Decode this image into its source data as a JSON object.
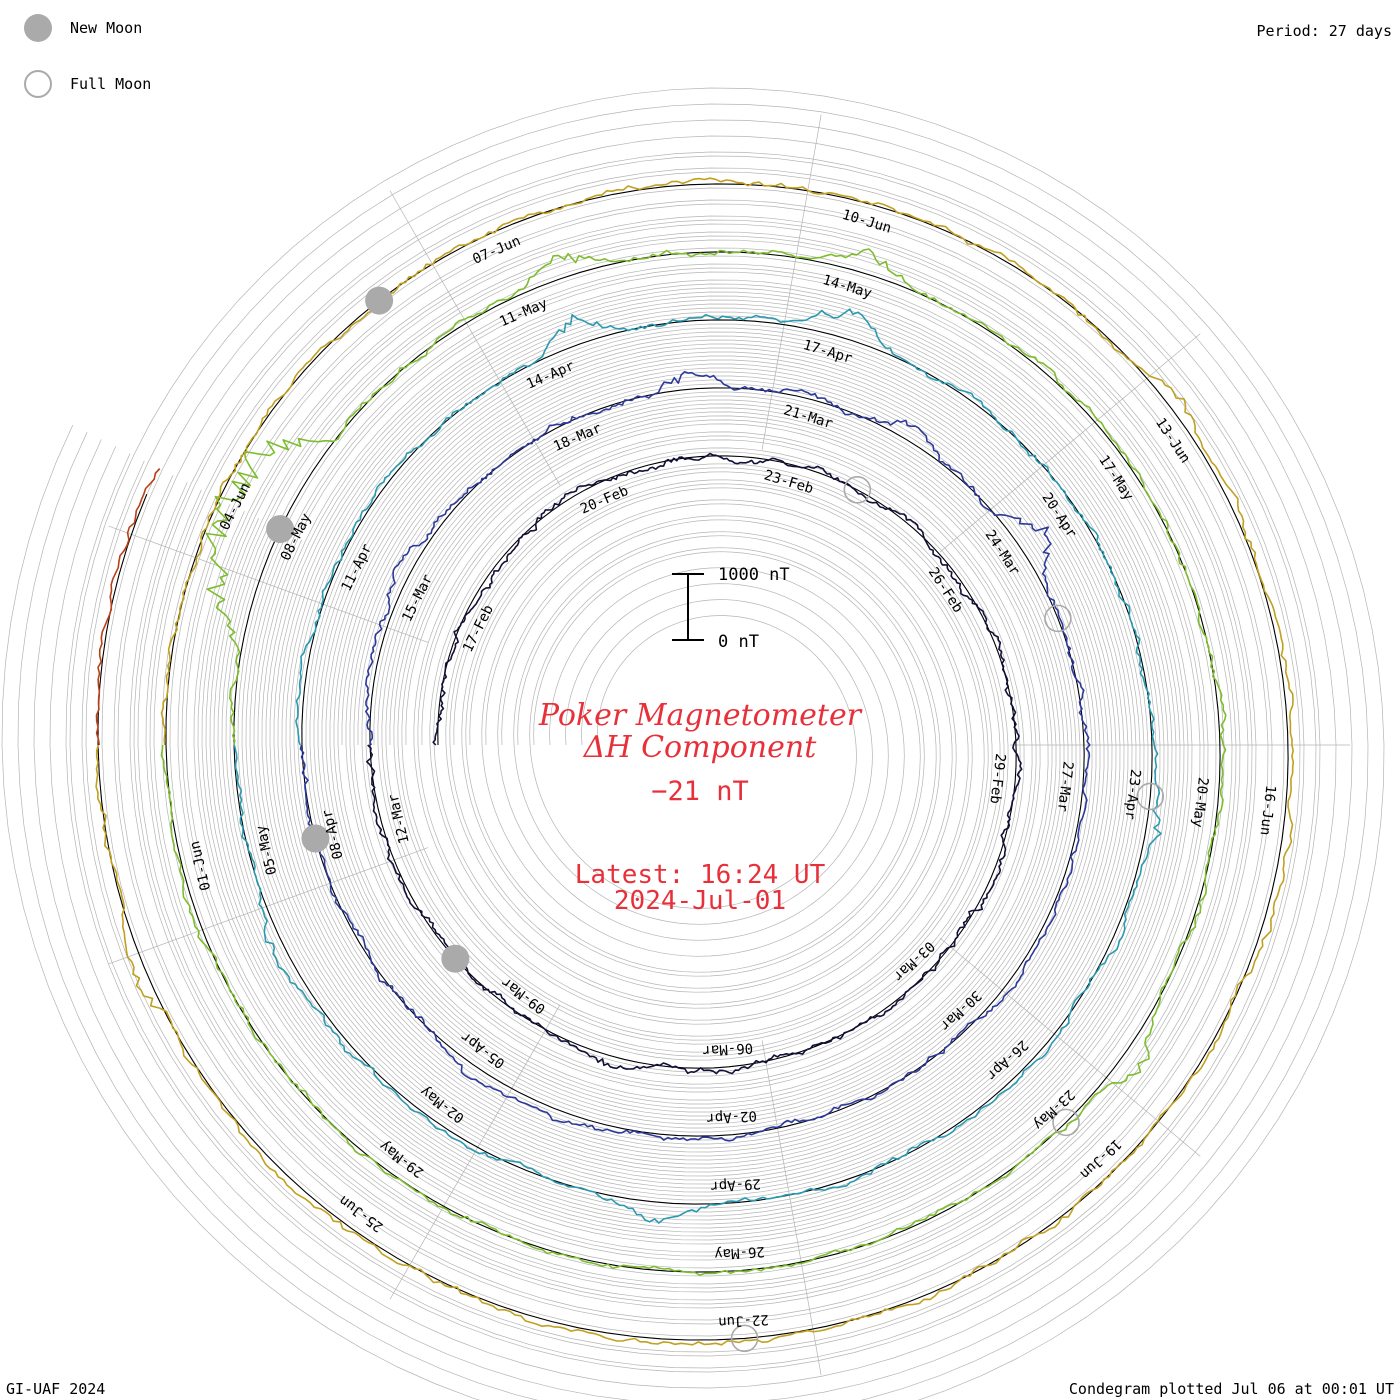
{
  "corner": {
    "period_label": "Period: 27 days",
    "credit": "GI-UAF 2024",
    "plotted": "Condegram plotted Jul 06 at 00:01 UT"
  },
  "legend": {
    "new_moon": "New Moon",
    "full_moon": "Full Moon",
    "new_moon_color": "#aaaaaa",
    "full_moon_color": "#aaaaaa"
  },
  "header": {
    "title_line1": "Poker Magnetometer",
    "title_line2": "ΔH Component",
    "current_value": "−21 nT",
    "latest_time": "Latest: 16:24 UT",
    "latest_date": "2024-Jul-01"
  },
  "colors": {
    "title": "#e8303a",
    "grid": "#b4b4b4",
    "baseline": "#000000"
  },
  "chart_data": {
    "type": "line",
    "subtype": "condegram-spiral",
    "period_days": 27,
    "scale_bar": {
      "top_label": "1000 nT",
      "bottom_label": "0 nT",
      "value_nT": 1000
    },
    "date_labels": [
      [
        "17-Feb",
        "20-Feb",
        "23-Feb",
        "26-Feb",
        "29-Feb",
        "03-Mar",
        "06-Mar",
        "09-Mar",
        "12-Mar"
      ],
      [
        "15-Mar",
        "18-Mar",
        "21-Mar",
        "24-Mar",
        "27-Mar",
        "30-Mar",
        "02-Apr",
        "05-Apr",
        "08-Apr"
      ],
      [
        "11-Apr",
        "14-Apr",
        "17-Apr",
        "20-Apr",
        "23-Apr",
        "26-Apr",
        "29-Apr",
        "02-May",
        "05-May"
      ],
      [
        "08-May",
        "11-May",
        "14-May",
        "17-May",
        "20-May",
        "23-May",
        "26-May",
        "29-May",
        "01-Jun"
      ],
      [
        "04-Jun",
        "07-Jun",
        "10-Jun",
        "13-Jun",
        "16-Jun",
        "19-Jun",
        "22-Jun",
        "25-Jun"
      ]
    ],
    "series": [
      {
        "color": "#10103a",
        "start": "2024-02-15",
        "end": "2024-03-13",
        "baseline_nT": 0,
        "mean_nT": -20,
        "spikes": [
          [
            0.8,
            -180
          ],
          [
            0.36,
            -150
          ],
          [
            0.59,
            140
          ],
          [
            0.09,
            90
          ]
        ]
      },
      {
        "color": "#2d3a9a",
        "start": "2024-03-13",
        "end": "2024-04-09",
        "baseline_nT": 0,
        "mean_nT": -30,
        "spikes": [
          [
            0.24,
            -380
          ],
          [
            0.41,
            -600
          ],
          [
            0.34,
            -300
          ],
          [
            0.08,
            -240
          ],
          [
            0.85,
            -200
          ]
        ]
      },
      {
        "color": "#2a9ab0",
        "start": "2024-04-09",
        "end": "2024-05-06",
        "baseline_nT": 0,
        "mean_nT": -25,
        "spikes": [
          [
            0.3,
            -420
          ],
          [
            0.2,
            -380
          ],
          [
            0.53,
            -300
          ],
          [
            0.77,
            -280
          ],
          [
            0.93,
            -220
          ]
        ]
      },
      {
        "color": "#7dbd2d",
        "start": "2024-05-06",
        "end": "2024-06-02",
        "baseline_nT": 0,
        "mean_nT": -20,
        "spikes": [
          [
            0.07,
            -1300
          ],
          [
            0.09,
            -1200
          ],
          [
            0.05,
            -900
          ],
          [
            0.2,
            -500
          ],
          [
            0.3,
            -400
          ],
          [
            0.6,
            -350
          ]
        ]
      },
      {
        "color": "#c0a020",
        "start": "2024-06-02",
        "end": "2024-06-29",
        "baseline_nT": 0,
        "mean_nT": -15,
        "spikes": [
          [
            0.94,
            -300
          ],
          [
            0.4,
            -220
          ],
          [
            0.55,
            -200
          ]
        ]
      },
      {
        "color": "#b84018",
        "start": "2024-06-29",
        "end": "2024-07-01",
        "baseline_nT": 0,
        "mean_nT": -21,
        "spikes": []
      }
    ],
    "moon_phases": {
      "new": [
        "2024-03-10",
        "2024-04-08",
        "2024-05-08",
        "2024-06-06"
      ],
      "full": [
        "2024-02-24",
        "2024-03-25",
        "2024-04-23",
        "2024-05-23",
        "2024-06-22"
      ]
    }
  }
}
